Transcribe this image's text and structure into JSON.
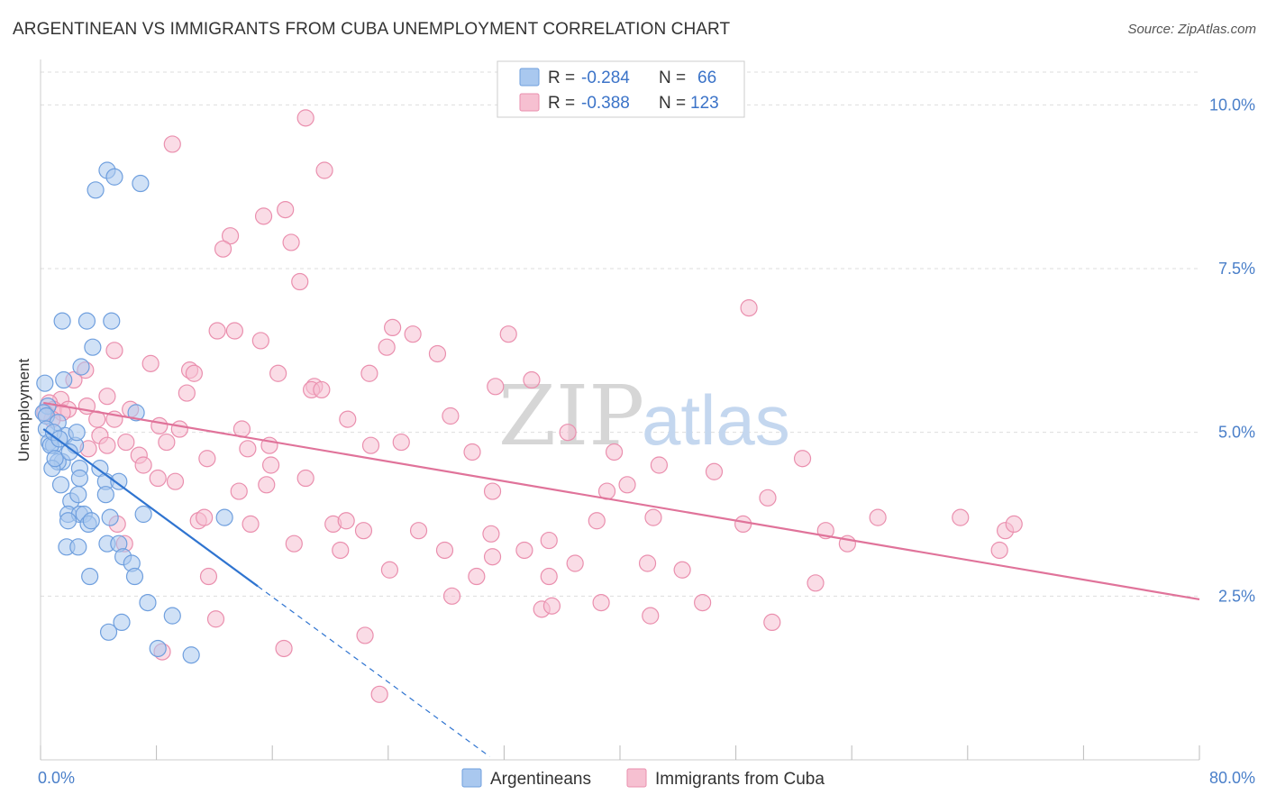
{
  "title": "ARGENTINEAN VS IMMIGRANTS FROM CUBA UNEMPLOYMENT CORRELATION CHART",
  "source": "Source: ZipAtlas.com",
  "watermark": {
    "zip": "ZIP",
    "atlas": "atlas"
  },
  "colors": {
    "blue_fill": "#a9c8ef",
    "blue_stroke": "#6f9fde",
    "blue_line": "#2f74d0",
    "pink_fill": "#f6c0d1",
    "pink_stroke": "#ea8fae",
    "pink_line": "#e0739a",
    "grid": "#dddddd",
    "tick_text": "#4a7fc9"
  },
  "legend_box": {
    "rows": [
      {
        "r_label": "R =",
        "r_value": "-0.284",
        "n_label": "N =",
        "n_value": "66",
        "swatch": "blue"
      },
      {
        "r_label": "R =",
        "r_value": "-0.388",
        "n_label": "N =",
        "n_value": "123",
        "swatch": "pink"
      }
    ]
  },
  "chart_data": {
    "type": "scatter",
    "title": "ARGENTINEAN VS IMMIGRANTS FROM CUBA UNEMPLOYMENT CORRELATION CHART",
    "xlabel": "",
    "ylabel": "Unemployment",
    "xlim": [
      0,
      80
    ],
    "ylim": [
      0,
      10.5
    ],
    "x_tick_labels": [
      "0.0%",
      "80.0%"
    ],
    "y_ticks": [
      2.5,
      5.0,
      7.5,
      10.0
    ],
    "y_tick_labels": [
      "2.5%",
      "5.0%",
      "7.5%",
      "10.0%"
    ],
    "grid": true,
    "legend_position": "bottom",
    "series": [
      {
        "name": "Argentineans",
        "color": "blue",
        "R": -0.284,
        "N": 66,
        "trend": {
          "x0": 0.2,
          "y0": 5.05,
          "x1": 15.0,
          "y1": 2.65,
          "dash_to_x": 31.0,
          "dash_to_y": 0.05
        },
        "points": [
          [
            4.6,
            9.0
          ],
          [
            5.1,
            8.9
          ],
          [
            3.8,
            8.7
          ],
          [
            6.9,
            8.8
          ],
          [
            1.5,
            6.7
          ],
          [
            3.2,
            6.7
          ],
          [
            4.9,
            6.7
          ],
          [
            3.6,
            6.3
          ],
          [
            2.8,
            6.0
          ],
          [
            1.6,
            5.8
          ],
          [
            0.3,
            5.75
          ],
          [
            0.5,
            5.4
          ],
          [
            0.2,
            5.3
          ],
          [
            0.4,
            5.25
          ],
          [
            1.2,
            5.15
          ],
          [
            0.4,
            5.05
          ],
          [
            1.7,
            4.95
          ],
          [
            6.6,
            5.3
          ],
          [
            0.6,
            4.85
          ],
          [
            0.9,
            4.8
          ],
          [
            2.4,
            4.8
          ],
          [
            1.5,
            4.55
          ],
          [
            1.2,
            4.55
          ],
          [
            0.8,
            4.45
          ],
          [
            2.7,
            4.45
          ],
          [
            4.1,
            4.45
          ],
          [
            4.5,
            4.25
          ],
          [
            2.7,
            4.3
          ],
          [
            5.4,
            4.25
          ],
          [
            1.4,
            4.2
          ],
          [
            2.1,
            3.95
          ],
          [
            2.6,
            4.05
          ],
          [
            4.5,
            4.05
          ],
          [
            1.9,
            3.75
          ],
          [
            2.7,
            3.75
          ],
          [
            4.8,
            3.7
          ],
          [
            7.1,
            3.75
          ],
          [
            1.9,
            3.65
          ],
          [
            3.0,
            3.75
          ],
          [
            3.3,
            3.6
          ],
          [
            12.7,
            3.7
          ],
          [
            1.8,
            3.25
          ],
          [
            2.6,
            3.25
          ],
          [
            4.6,
            3.3
          ],
          [
            5.4,
            3.3
          ],
          [
            5.7,
            3.1
          ],
          [
            6.3,
            3.0
          ],
          [
            3.4,
            2.8
          ],
          [
            6.5,
            2.8
          ],
          [
            7.4,
            2.4
          ],
          [
            5.6,
            2.1
          ],
          [
            9.1,
            2.2
          ],
          [
            4.7,
            1.95
          ],
          [
            8.1,
            1.7
          ],
          [
            10.4,
            1.6
          ],
          [
            0.7,
            4.8
          ],
          [
            1.0,
            4.6
          ],
          [
            2.0,
            4.7
          ],
          [
            3.5,
            3.65
          ],
          [
            0.9,
            5.0
          ],
          [
            1.3,
            4.9
          ],
          [
            2.5,
            5.0
          ]
        ]
      },
      {
        "name": "Immigrants from Cuba",
        "color": "pink",
        "R": -0.388,
        "N": 123,
        "trend": {
          "x0": 0.2,
          "y0": 5.45,
          "x1": 80.0,
          "y1": 2.45
        },
        "points": [
          [
            18.3,
            9.8
          ],
          [
            9.1,
            9.4
          ],
          [
            19.6,
            9.0
          ],
          [
            15.4,
            8.3
          ],
          [
            16.9,
            8.4
          ],
          [
            13.1,
            8.0
          ],
          [
            12.6,
            7.8
          ],
          [
            17.3,
            7.9
          ],
          [
            17.9,
            7.3
          ],
          [
            48.9,
            6.9
          ],
          [
            12.2,
            6.55
          ],
          [
            13.4,
            6.55
          ],
          [
            15.2,
            6.4
          ],
          [
            24.3,
            6.6
          ],
          [
            25.7,
            6.5
          ],
          [
            32.3,
            6.5
          ],
          [
            23.9,
            6.3
          ],
          [
            5.1,
            6.25
          ],
          [
            27.4,
            6.2
          ],
          [
            7.6,
            6.05
          ],
          [
            10.3,
            5.95
          ],
          [
            16.4,
            5.9
          ],
          [
            22.7,
            5.9
          ],
          [
            10.6,
            5.9
          ],
          [
            3.1,
            5.95
          ],
          [
            2.3,
            5.8
          ],
          [
            33.9,
            5.8
          ],
          [
            18.9,
            5.7
          ],
          [
            31.4,
            5.7
          ],
          [
            18.7,
            5.65
          ],
          [
            19.4,
            5.65
          ],
          [
            10.1,
            5.6
          ],
          [
            1.4,
            5.5
          ],
          [
            4.6,
            5.55
          ],
          [
            0.6,
            5.45
          ],
          [
            0.9,
            5.35
          ],
          [
            1.9,
            5.35
          ],
          [
            3.2,
            5.4
          ],
          [
            6.2,
            5.35
          ],
          [
            1.5,
            5.3
          ],
          [
            0.8,
            5.2
          ],
          [
            3.9,
            5.2
          ],
          [
            5.1,
            5.2
          ],
          [
            0.3,
            5.3
          ],
          [
            21.2,
            5.2
          ],
          [
            28.3,
            5.25
          ],
          [
            8.2,
            5.1
          ],
          [
            9.6,
            5.05
          ],
          [
            13.9,
            5.05
          ],
          [
            36.4,
            5.0
          ],
          [
            4.1,
            4.95
          ],
          [
            5.9,
            4.85
          ],
          [
            8.7,
            4.85
          ],
          [
            15.8,
            4.8
          ],
          [
            22.8,
            4.8
          ],
          [
            24.9,
            4.85
          ],
          [
            4.6,
            4.8
          ],
          [
            3.3,
            4.75
          ],
          [
            6.8,
            4.65
          ],
          [
            39.6,
            4.7
          ],
          [
            29.8,
            4.7
          ],
          [
            7.1,
            4.5
          ],
          [
            11.5,
            4.6
          ],
          [
            15.9,
            4.5
          ],
          [
            42.7,
            4.5
          ],
          [
            46.5,
            4.4
          ],
          [
            52.6,
            4.6
          ],
          [
            8.1,
            4.3
          ],
          [
            18.3,
            4.3
          ],
          [
            9.3,
            4.25
          ],
          [
            40.5,
            4.2
          ],
          [
            13.7,
            4.1
          ],
          [
            15.6,
            4.2
          ],
          [
            31.2,
            4.1
          ],
          [
            39.1,
            4.1
          ],
          [
            50.2,
            4.0
          ],
          [
            5.3,
            3.6
          ],
          [
            10.9,
            3.65
          ],
          [
            11.3,
            3.7
          ],
          [
            14.5,
            3.6
          ],
          [
            20.2,
            3.6
          ],
          [
            21.1,
            3.65
          ],
          [
            22.3,
            3.5
          ],
          [
            26.1,
            3.5
          ],
          [
            31.1,
            3.45
          ],
          [
            38.4,
            3.65
          ],
          [
            42.3,
            3.7
          ],
          [
            54.2,
            3.5
          ],
          [
            57.8,
            3.7
          ],
          [
            66.6,
            3.5
          ],
          [
            48.5,
            3.6
          ],
          [
            63.5,
            3.7
          ],
          [
            67.2,
            3.6
          ],
          [
            5.8,
            3.3
          ],
          [
            17.5,
            3.3
          ],
          [
            20.7,
            3.2
          ],
          [
            27.9,
            3.2
          ],
          [
            33.4,
            3.2
          ],
          [
            55.7,
            3.3
          ],
          [
            66.2,
            3.2
          ],
          [
            31.2,
            3.1
          ],
          [
            36.9,
            3.0
          ],
          [
            41.9,
            3.0
          ],
          [
            44.3,
            2.9
          ],
          [
            24.1,
            2.9
          ],
          [
            11.6,
            2.8
          ],
          [
            30.1,
            2.8
          ],
          [
            35.1,
            2.8
          ],
          [
            53.5,
            2.7
          ],
          [
            28.4,
            2.5
          ],
          [
            34.6,
            2.3
          ],
          [
            35.3,
            2.35
          ],
          [
            38.7,
            2.4
          ],
          [
            42.1,
            2.2
          ],
          [
            45.7,
            2.4
          ],
          [
            12.1,
            2.15
          ],
          [
            50.5,
            2.1
          ],
          [
            22.4,
            1.9
          ],
          [
            8.4,
            1.65
          ],
          [
            16.8,
            1.7
          ],
          [
            23.4,
            1.0
          ],
          [
            14.3,
            4.75
          ],
          [
            35.1,
            3.35
          ]
        ]
      }
    ]
  }
}
